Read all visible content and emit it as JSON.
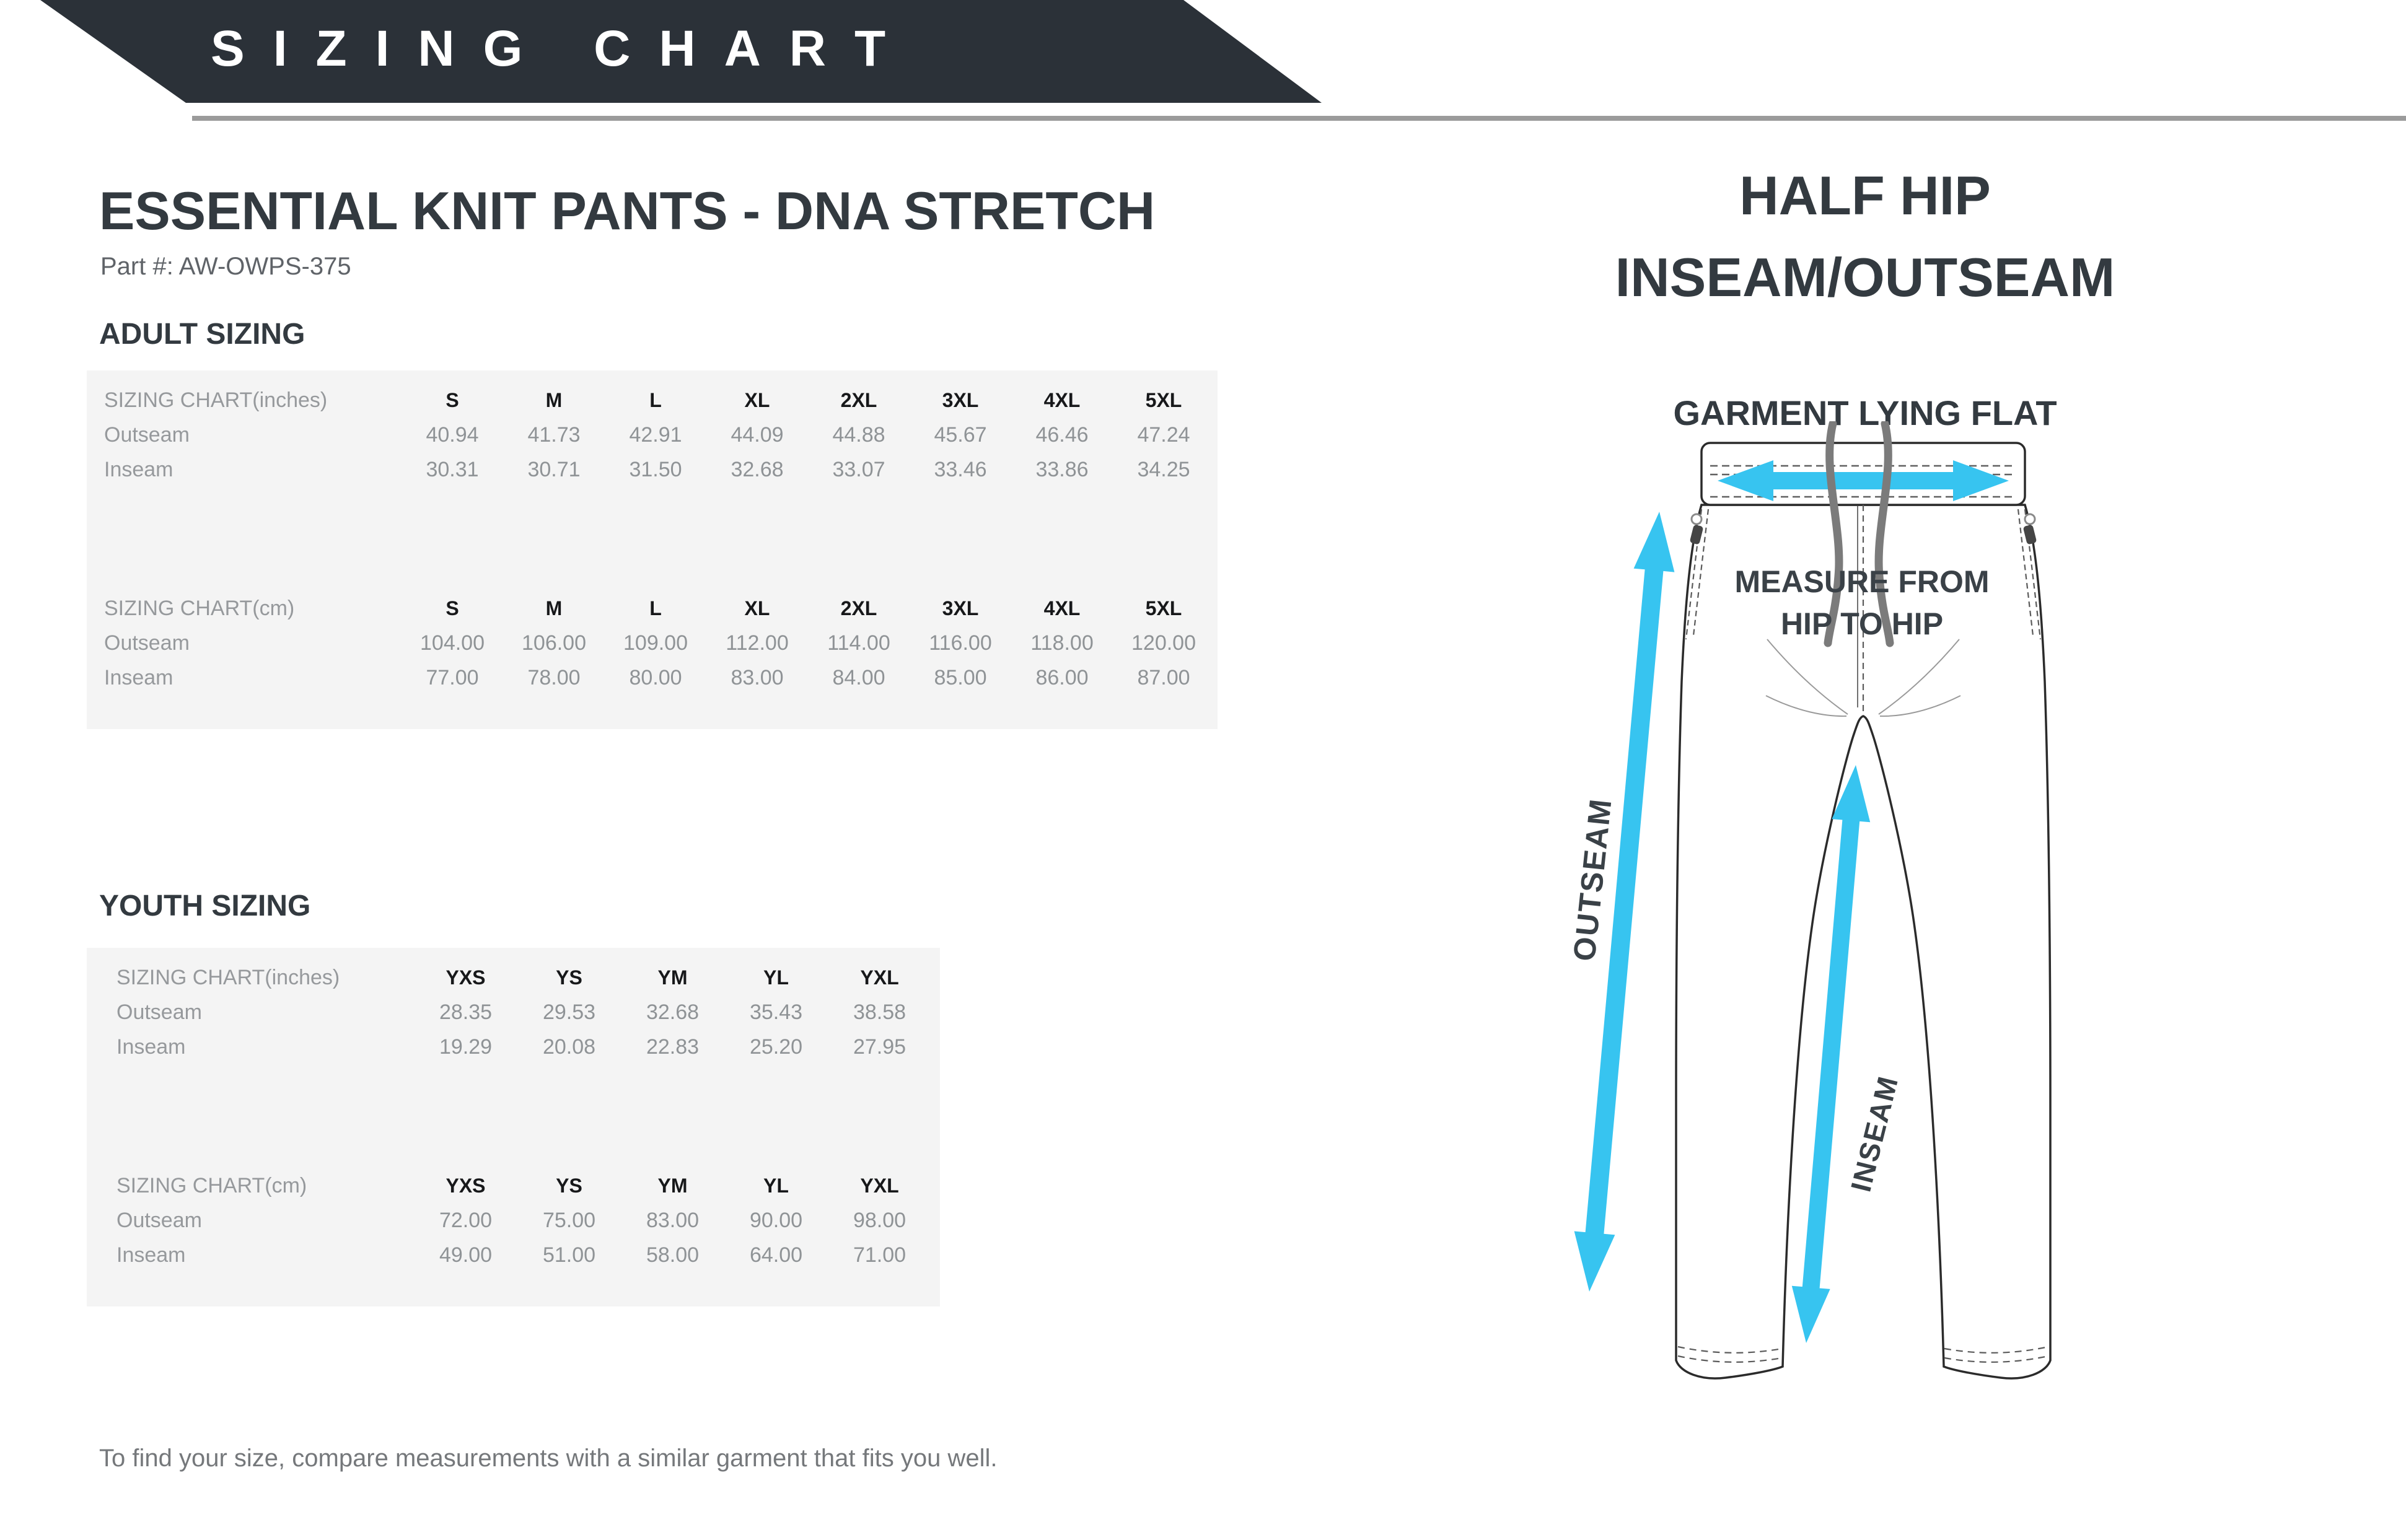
{
  "banner": {
    "title": "SIZING CHART"
  },
  "product": {
    "title": "ESSENTIAL KNIT PANTS - DNA STRETCH",
    "part_label": "Part #: AW-OWPS-375"
  },
  "sections": {
    "adult": {
      "heading": "ADULT SIZING",
      "tables": [
        {
          "unit_label": "SIZING CHART(inches)",
          "sizes": [
            "S",
            "M",
            "L",
            "XL",
            "2XL",
            "3XL",
            "4XL",
            "5XL"
          ],
          "rows": [
            {
              "label": "Outseam",
              "values": [
                "40.94",
                "41.73",
                "42.91",
                "44.09",
                "44.88",
                "45.67",
                "46.46",
                "47.24"
              ]
            },
            {
              "label": "Inseam",
              "values": [
                "30.31",
                "30.71",
                "31.50",
                "32.68",
                "33.07",
                "33.46",
                "33.86",
                "34.25"
              ]
            }
          ]
        },
        {
          "unit_label": "SIZING CHART(cm)",
          "sizes": [
            "S",
            "M",
            "L",
            "XL",
            "2XL",
            "3XL",
            "4XL",
            "5XL"
          ],
          "rows": [
            {
              "label": "Outseam",
              "values": [
                "104.00",
                "106.00",
                "109.00",
                "112.00",
                "114.00",
                "116.00",
                "118.00",
                "120.00"
              ]
            },
            {
              "label": "Inseam",
              "values": [
                "77.00",
                "78.00",
                "80.00",
                "83.00",
                "84.00",
                "85.00",
                "86.00",
                "87.00"
              ]
            }
          ]
        }
      ]
    },
    "youth": {
      "heading": "YOUTH SIZING",
      "tables": [
        {
          "unit_label": "SIZING CHART(inches)",
          "sizes": [
            "YXS",
            "YS",
            "YM",
            "YL",
            "YXL"
          ],
          "rows": [
            {
              "label": "Outseam",
              "values": [
                "28.35",
                "29.53",
                "32.68",
                "35.43",
                "38.58"
              ]
            },
            {
              "label": "Inseam",
              "values": [
                "19.29",
                "20.08",
                "22.83",
                "25.20",
                "27.95"
              ]
            }
          ]
        },
        {
          "unit_label": "SIZING CHART(cm)",
          "sizes": [
            "YXS",
            "YS",
            "YM",
            "YL",
            "YXL"
          ],
          "rows": [
            {
              "label": "Outseam",
              "values": [
                "72.00",
                "75.00",
                "83.00",
                "90.00",
                "98.00"
              ]
            },
            {
              "label": "Inseam",
              "values": [
                "49.00",
                "51.00",
                "58.00",
                "64.00",
                "71.00"
              ]
            }
          ]
        }
      ]
    }
  },
  "diagram": {
    "title_line1": "HALF HIP",
    "title_line2": "INSEAM/OUTSEAM",
    "flat_label": "GARMENT LYING FLAT",
    "measure_line1": "MEASURE FROM",
    "measure_line2": "HIP TO HIP",
    "outseam_label": "OUTSEAM",
    "inseam_label": "INSEAM"
  },
  "footer": {
    "note": "To find your size, compare measurements with a similar garment that fits you well."
  },
  "colors": {
    "banner_bg": "#2b3138",
    "heading_text": "#333a40",
    "table_bg": "#f4f4f4",
    "muted_text": "#8f9396",
    "size_header_text": "#17181a",
    "accent_blue": "#37c4f0",
    "underline_gray": "#9b9b9b",
    "note_text": "#75787b"
  }
}
